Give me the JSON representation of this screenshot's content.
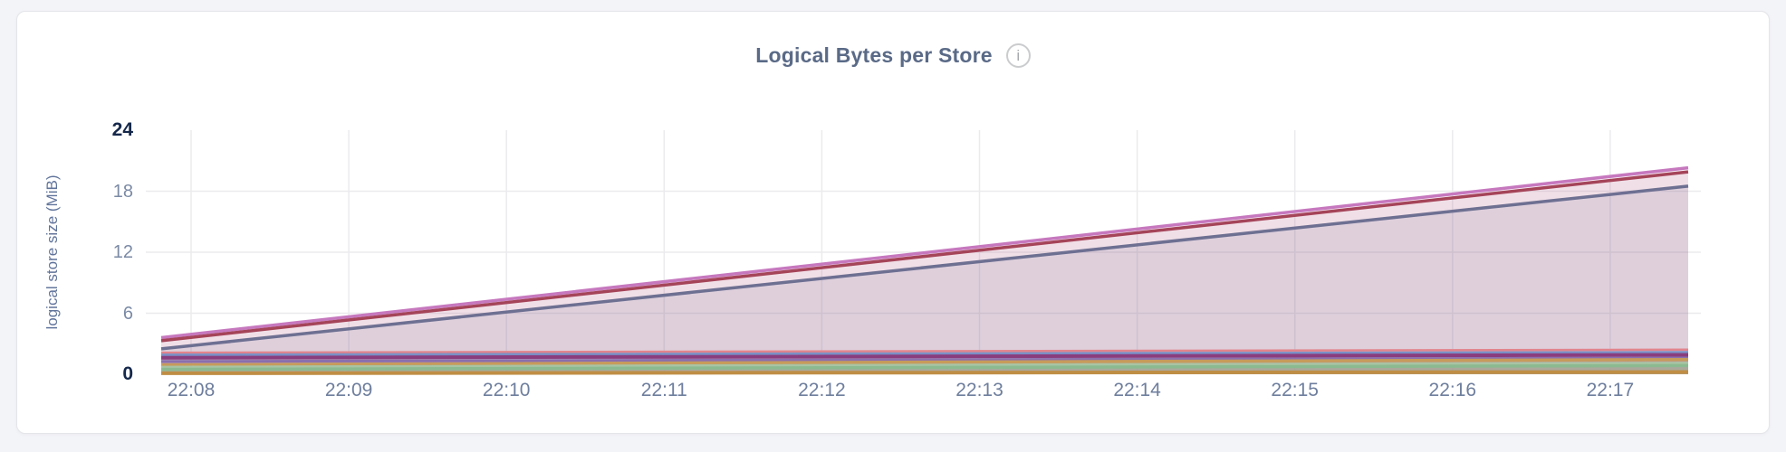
{
  "page": {
    "background": "#f3f4f8"
  },
  "header": {
    "title": "Logical Bytes per Store",
    "info_glyph": "i"
  },
  "chart_data": {
    "type": "area",
    "title": "Logical Bytes per Store",
    "xlabel": "",
    "ylabel": "logical store size (MiB)",
    "ylim": [
      0,
      24
    ],
    "grid": true,
    "legend": "none",
    "units": "MiB",
    "x_axis": {
      "tick_labels": [
        "22:08",
        "22:09",
        "22:10",
        "22:11",
        "22:12",
        "22:13",
        "22:14",
        "22:15",
        "22:16",
        "22:17"
      ]
    },
    "y_axis": {
      "ticks": [
        {
          "label": "24",
          "value": 24,
          "emphasized": true,
          "gridline": false
        },
        {
          "label": "18",
          "value": 18,
          "emphasized": false,
          "gridline": true
        },
        {
          "label": "12",
          "value": 12,
          "emphasized": false,
          "gridline": true
        },
        {
          "label": "6",
          "value": 6,
          "emphasized": false,
          "gridline": true
        },
        {
          "label": "0",
          "value": 0,
          "emphasized": true,
          "gridline": false
        }
      ]
    },
    "series": [
      {
        "id": "s1",
        "color": "#c678be",
        "width": 3.5,
        "fill_opacity": 0.1,
        "x": [
          0,
          1
        ],
        "values": [
          3.6,
          20.3
        ]
      },
      {
        "id": "s2",
        "color": "#a54459",
        "width": 3.5,
        "fill_opacity": 0.1,
        "x": [
          0,
          1
        ],
        "values": [
          3.3,
          19.9
        ]
      },
      {
        "id": "s3",
        "color": "#6e7092",
        "width": 3.5,
        "fill_opacity": 0.14,
        "x": [
          0,
          1
        ],
        "values": [
          2.5,
          18.5
        ]
      },
      {
        "id": "s4",
        "color": "#e2848c",
        "width": 2.5,
        "fill_opacity": 0.2,
        "x": [
          0,
          1
        ],
        "values": [
          2.12,
          2.42
        ]
      },
      {
        "id": "s5",
        "color": "#7a90c6",
        "width": 3,
        "fill_opacity": 0.22,
        "x": [
          0,
          1
        ],
        "values": [
          1.9,
          2.15
        ]
      },
      {
        "id": "s6",
        "color": "#8a3d7e",
        "width": 4,
        "fill_opacity": 0.18,
        "x": [
          0,
          1
        ],
        "values": [
          1.62,
          1.9
        ]
      },
      {
        "id": "s7",
        "color": "#8a6fae",
        "width": 3,
        "fill_opacity": 0.15,
        "x": [
          0,
          1
        ],
        "values": [
          1.25,
          1.6
        ]
      },
      {
        "id": "s8",
        "color": "#c79b5b",
        "width": 3.5,
        "fill_opacity": 0.25,
        "x": [
          0,
          1
        ],
        "values": [
          0.92,
          1.45
        ]
      },
      {
        "id": "s9",
        "color": "#a8c4a4",
        "width": 3,
        "fill_opacity": 0.22,
        "x": [
          0,
          1
        ],
        "values": [
          0.7,
          1.1
        ]
      },
      {
        "id": "s10",
        "color": "#8cba90",
        "width": 3.5,
        "fill_opacity": 0.25,
        "x": [
          0,
          1
        ],
        "values": [
          0.48,
          0.85
        ]
      },
      {
        "id": "s11",
        "color": "#bf8e45",
        "width": 4,
        "fill_opacity": 0.28,
        "x": [
          0,
          1
        ],
        "values": [
          0.1,
          0.22
        ]
      }
    ]
  }
}
